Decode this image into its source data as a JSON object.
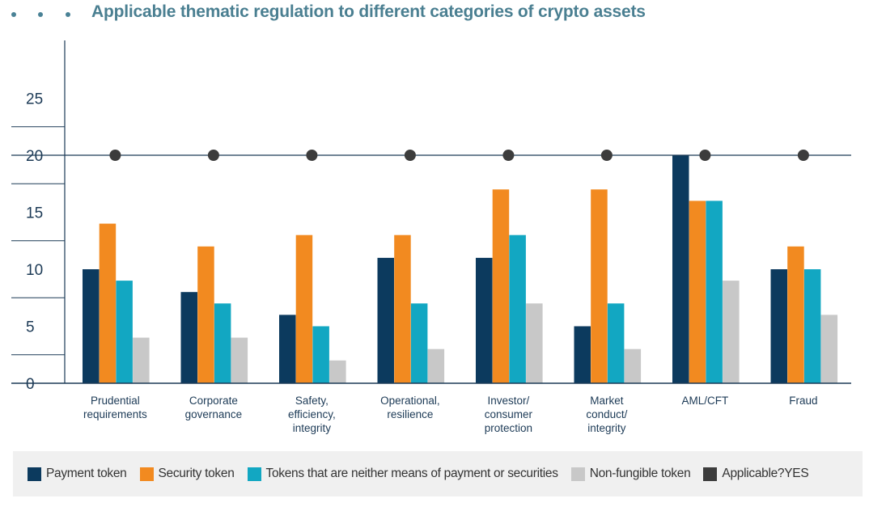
{
  "title": "Applicable thematic regulation to different categories of crypto assets",
  "colors": {
    "payment": "#0c3a5e",
    "security": "#f28a20",
    "neither": "#12a7c2",
    "nft": "#c8c8c8",
    "applicable": "#3c3c3c",
    "axis": "#1c3a56",
    "title": "#4a7f91"
  },
  "legend": [
    {
      "label": "Payment token",
      "color": "#0c3a5e"
    },
    {
      "label": "Security token",
      "color": "#f28a20"
    },
    {
      "label": "Tokens that are neither means of payment or securities",
      "color": "#12a7c2"
    },
    {
      "label": "Non-fungible token",
      "color": "#c8c8c8"
    },
    {
      "label": "Applicable?YES",
      "color": "#3c3c3c"
    }
  ],
  "chart_data": {
    "type": "bar",
    "title": "Applicable thematic regulation to different categories of crypto assets",
    "categories": [
      [
        "Prudential",
        "requirements"
      ],
      [
        "Corporate",
        "governance"
      ],
      [
        "Safety,",
        "efficiency,",
        "integrity"
      ],
      [
        "Operational,",
        "resilience"
      ],
      [
        "Investor/",
        "consumer",
        "protection"
      ],
      [
        "Market",
        "conduct/",
        "integrity"
      ],
      [
        "AML/CFT"
      ],
      [
        "Fraud"
      ]
    ],
    "series": [
      {
        "name": "Payment token",
        "values": [
          10,
          8,
          6,
          11,
          11,
          5,
          20,
          10
        ]
      },
      {
        "name": "Security token",
        "values": [
          14,
          12,
          13,
          13,
          17,
          17,
          16,
          12
        ]
      },
      {
        "name": "Tokens that are neither means of payment or securities",
        "values": [
          9,
          7,
          5,
          7,
          13,
          7,
          16,
          10
        ]
      },
      {
        "name": "Non-fungible token",
        "values": [
          4,
          4,
          2,
          3,
          7,
          3,
          9,
          6
        ]
      }
    ],
    "applicable": {
      "name": "Applicable?YES",
      "values": [
        20,
        20,
        20,
        20,
        20,
        20,
        20,
        20
      ]
    },
    "yticks": [
      "25",
      "20",
      "15",
      "10",
      "5",
      "0"
    ],
    "ylim": [
      0,
      30
    ],
    "grid": "horizontal",
    "legend_position": "bottom"
  }
}
